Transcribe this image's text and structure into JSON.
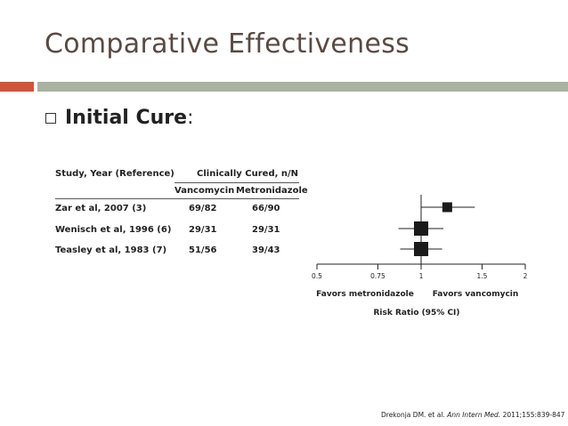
{
  "slide": {
    "title": "Comparative Effectiveness",
    "bullet": "Initial Cure",
    "bullet_suffix": ":",
    "citation": {
      "pre": "Drekonja DM. et al. ",
      "journal": "Ann Intern Med.",
      "post": " 2011;155:839-847"
    },
    "accent_colors": {
      "title": "#5a4a42",
      "rule_accent": "#d0543a",
      "rule_gray": "#a9b39f"
    }
  },
  "table": {
    "study_header": "Study, Year (Reference)",
    "group_header": "Clinically Cured, n/N",
    "col_vanco": "Vancomycin",
    "col_metro": "Metronidazole",
    "rows": [
      {
        "study": "Zar et al, 2007 (3)",
        "vanco": "69/82",
        "metro": "66/90"
      },
      {
        "study": "Wenisch et al, 1996 (6)",
        "vanco": "29/31",
        "metro": "29/31"
      },
      {
        "study": "Teasley et al, 1983 (7)",
        "vanco": "51/56",
        "metro": "39/43"
      }
    ]
  },
  "chart_data": {
    "type": "scatter",
    "subtype": "forest-plot",
    "xlabel": "Risk Ratio (95% CI)",
    "x_ticks": [
      "0.5",
      "0.75",
      "1",
      "1.5",
      "2"
    ],
    "xlim": [
      0.5,
      2
    ],
    "x_scale": "log",
    "reference_line": 1,
    "left_label": "Favors metronidazole",
    "right_label": "Favors vancomycin",
    "studies": [
      {
        "study": "Zar et al, 2007 (3)",
        "rr": 1.19,
        "ci": [
          1.0,
          1.43
        ],
        "weight": "small"
      },
      {
        "study": "Wenisch et al, 1996 (6)",
        "rr": 1.0,
        "ci": [
          0.86,
          1.16
        ],
        "weight": "large"
      },
      {
        "study": "Teasley et al, 1983 (7)",
        "rr": 1.0,
        "ci": [
          0.87,
          1.15
        ],
        "weight": "large"
      }
    ],
    "grid": false,
    "legend": "none"
  }
}
